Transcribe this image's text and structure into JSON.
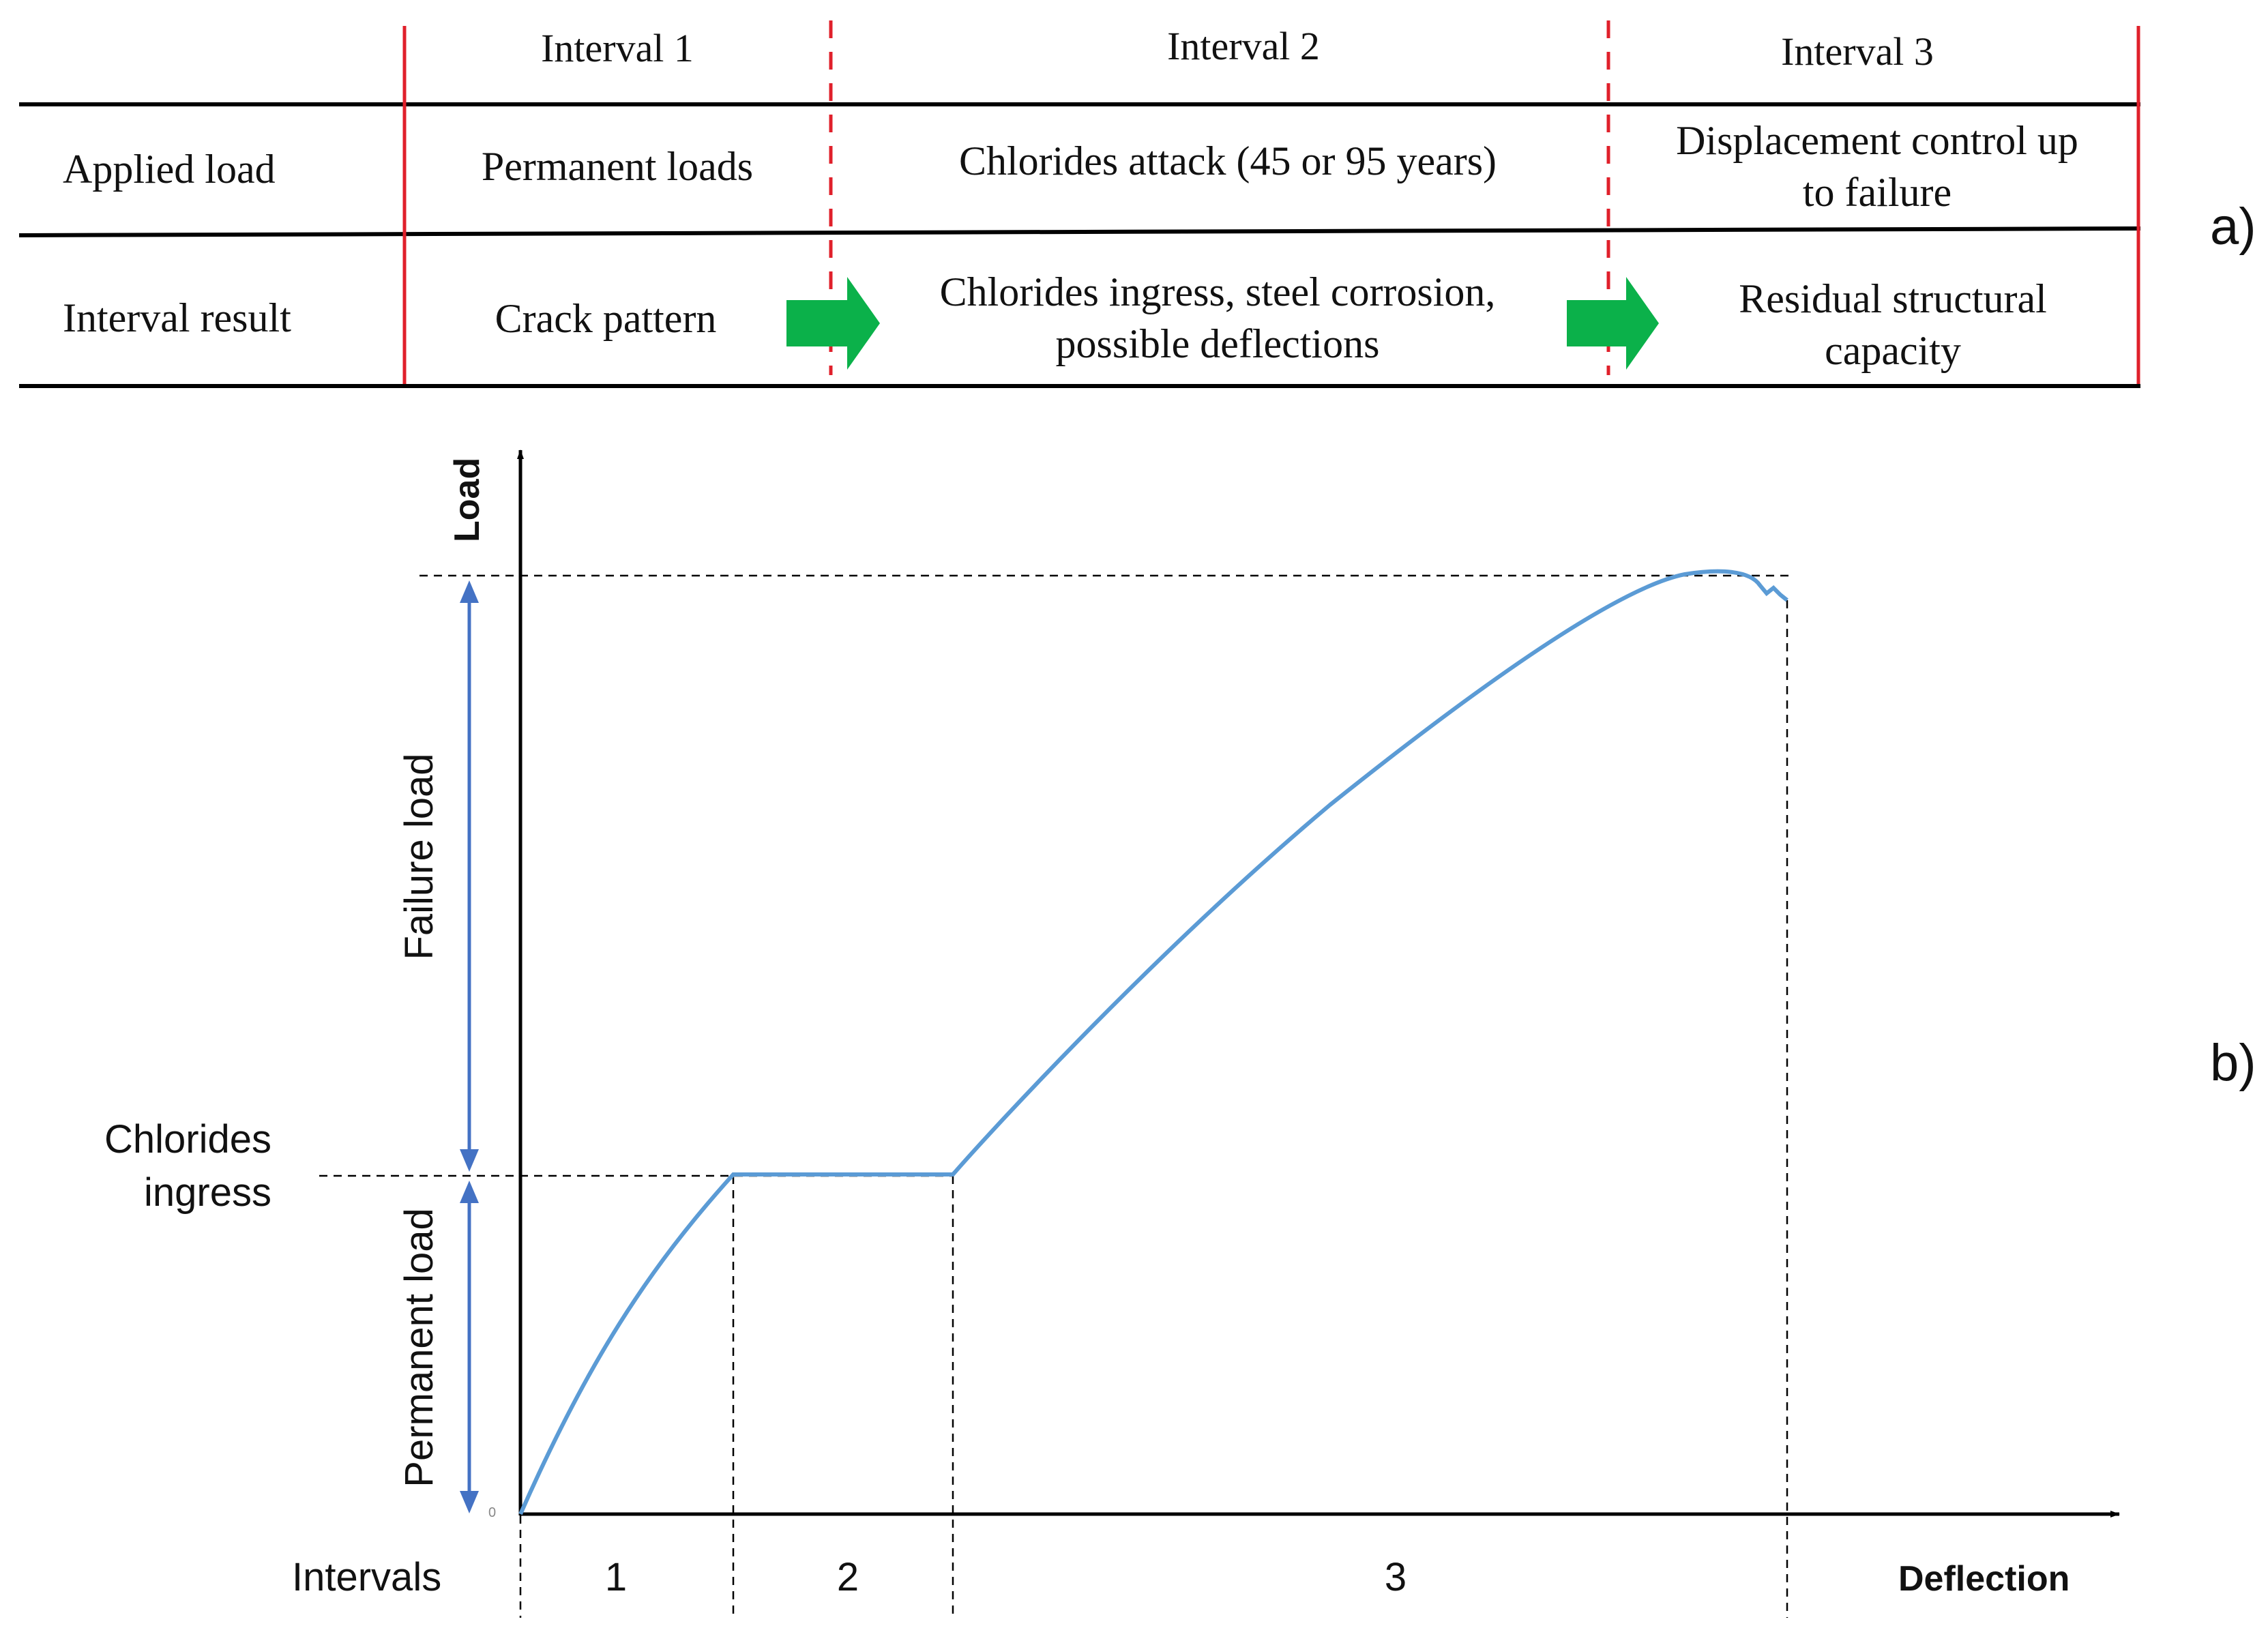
{
  "panel_a": {
    "panel_label": "a)",
    "interval_headers": [
      "Interval 1",
      "Interval 2",
      "Interval 3"
    ],
    "rows": [
      {
        "label": "Applied load",
        "cells": [
          [
            "Permanent loads"
          ],
          [
            "Chlorides attack (45 or 95 years)"
          ],
          [
            "Displacement control up",
            "to failure"
          ]
        ]
      },
      {
        "label": "Interval result",
        "cells": [
          [
            "Crack pattern"
          ],
          [
            "Chlorides ingress, steel corrosion,",
            "possible deflections"
          ],
          [
            "Residual structural",
            "capacity"
          ]
        ]
      }
    ],
    "colors": {
      "table_line": "#000000",
      "interval_divider": "#e0202b",
      "arrow": "#0bb14a"
    }
  },
  "panel_b": {
    "panel_label": "b)",
    "y_axis_label": "Load",
    "x_axis_label": "Deflection",
    "origin_label": "0",
    "failure_load_label": "Failure load",
    "permanent_load_label": "Permanent load",
    "chlorides_ingress_label": [
      "Chlorides",
      "ingress"
    ],
    "intervals_label": "Intervals",
    "interval_numbers": [
      "1",
      "2",
      "3"
    ],
    "colors": {
      "curve": "#5b9bd5",
      "dimension_arrow": "#4472c4",
      "axis": "#000000"
    }
  },
  "chart_data": {
    "type": "line",
    "title": "",
    "xlabel": "Deflection",
    "ylabel": "Load",
    "axis_numbers_shown": false,
    "series": [
      {
        "values_description": "qualitative load-deflection curve",
        "x": [
          0,
          0.05,
          0.1,
          0.15,
          0.2,
          0.25,
          0.3,
          0.35,
          0.4,
          0.45,
          0.5,
          0.55,
          0.6,
          0.65,
          0.7,
          0.75,
          0.8,
          0.85,
          0.9,
          0.93,
          0.96,
          0.98,
          1.0
        ],
        "y": [
          0,
          0.17,
          0.34,
          0.5,
          0.51,
          0.51,
          0.51,
          0.5,
          0.5,
          0.54,
          0.58,
          0.63,
          0.68,
          0.74,
          0.8,
          0.86,
          0.91,
          0.95,
          0.98,
          1.0,
          1.0,
          0.97,
          0.97
        ]
      }
    ],
    "segments": [
      "1",
      "2",
      "3"
    ]
  }
}
